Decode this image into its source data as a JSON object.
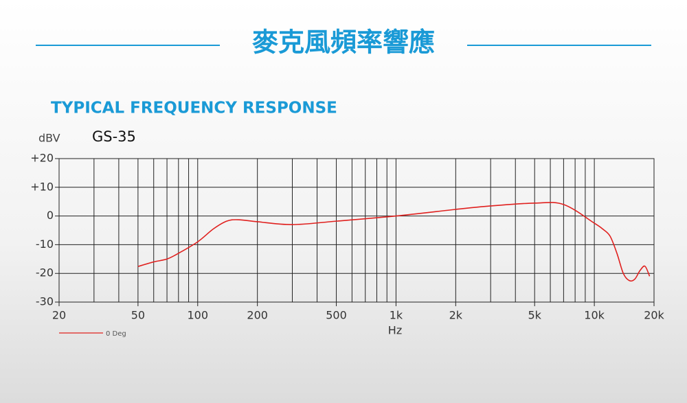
{
  "chart_data": {
    "type": "line",
    "banner": "麥克風頻率響應",
    "title": "TYPICAL FREQUENCY RESPONSE",
    "ylabel": "dBV",
    "model": "GS-35",
    "xlabel": "Hz",
    "xscale": "log",
    "xlim": [
      20,
      20000
    ],
    "ylim": [
      -30,
      20
    ],
    "xticks": [
      20,
      50,
      100,
      200,
      500,
      {
        "value": 1000,
        "label": "1k"
      },
      {
        "value": 2000,
        "label": "2k"
      },
      {
        "value": 5000,
        "label": "5k"
      },
      {
        "value": 10000,
        "label": "10k"
      },
      {
        "value": 20000,
        "label": "20k"
      }
    ],
    "xgrid": [
      20,
      30,
      40,
      50,
      60,
      70,
      80,
      90,
      100,
      200,
      300,
      400,
      500,
      600,
      700,
      800,
      900,
      1000,
      2000,
      3000,
      4000,
      5000,
      6000,
      7000,
      8000,
      9000,
      10000,
      20000
    ],
    "yticks": [
      {
        "value": 20,
        "label": "+20"
      },
      {
        "value": 10,
        "label": "+10"
      },
      0,
      -10,
      -20,
      -30
    ],
    "grid": true,
    "x": [
      50,
      60,
      70,
      80,
      100,
      120,
      140,
      160,
      200,
      300,
      500,
      1000,
      2000,
      3000,
      5000,
      7000,
      10000,
      11000,
      12000,
      13000,
      14000,
      15000,
      16000,
      17000,
      18000,
      19000
    ],
    "series": [
      {
        "name": "0 Deg",
        "color": "#e0201e",
        "values": [
          -17.6,
          -16,
          -15,
          -13,
          -9,
          -4.5,
          -1.8,
          -1.3,
          -2,
          -3,
          -1.8,
          0,
          2.3,
          3.5,
          4.5,
          4,
          -2.5,
          -4.5,
          -7,
          -13,
          -20,
          -22.5,
          -22,
          -19,
          -17.5,
          -21
        ]
      }
    ]
  }
}
